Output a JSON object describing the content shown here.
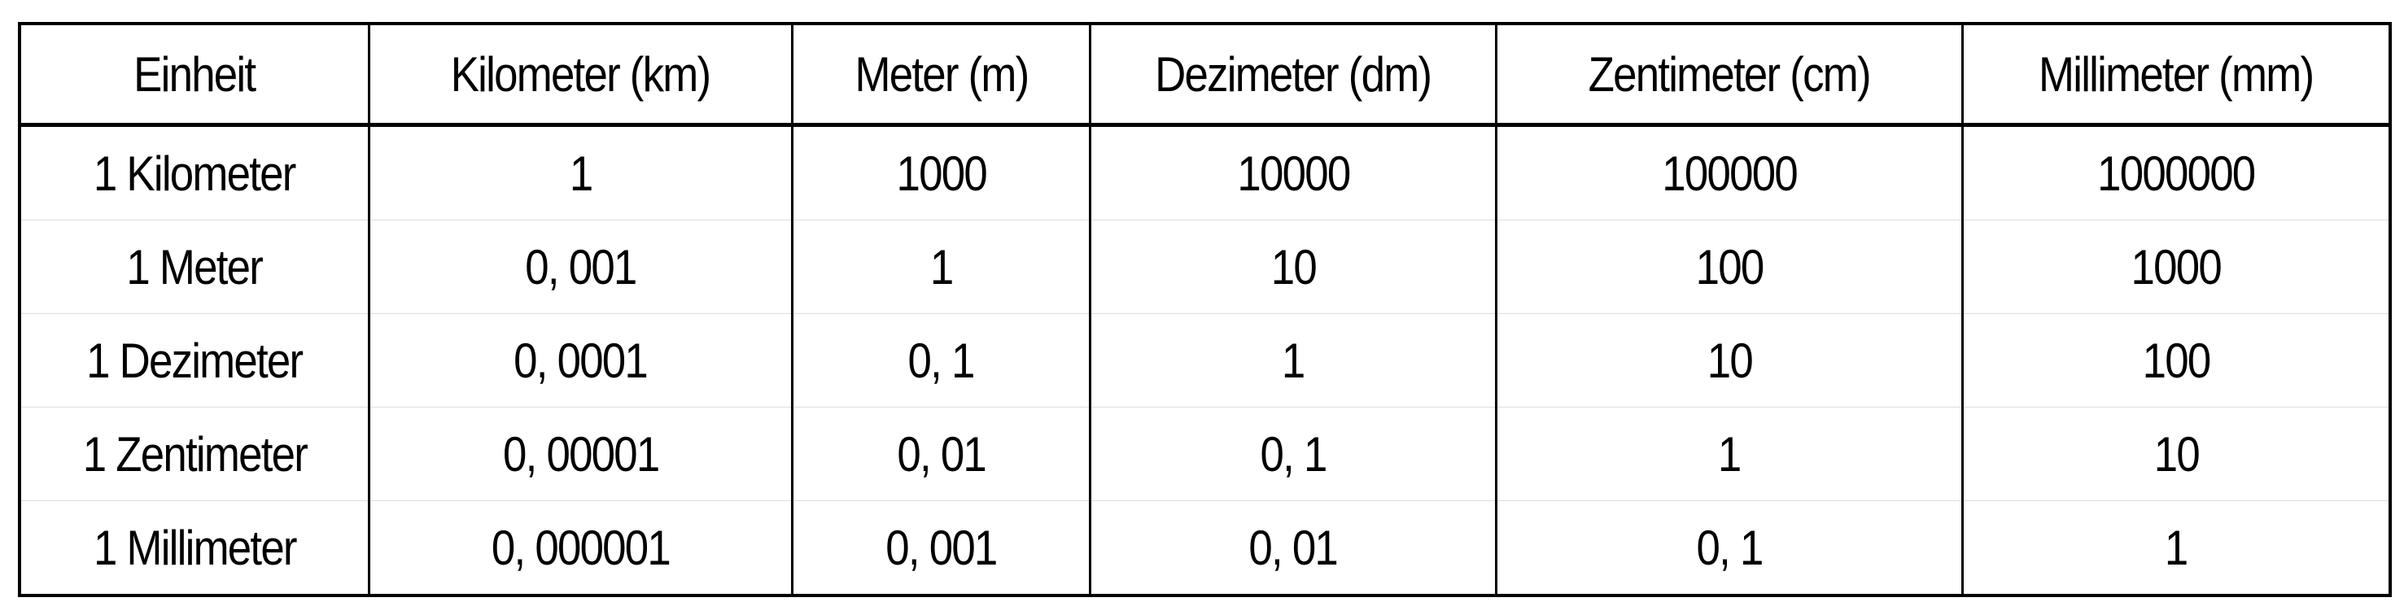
{
  "table": {
    "headers": [
      "Einheit",
      "Kilometer (km)",
      "Meter (m)",
      "Dezimeter (dm)",
      "Zentimeter (cm)",
      "Millimeter (mm)"
    ],
    "rows": [
      [
        "1 Kilometer",
        "1",
        "1000",
        "10000",
        "100000",
        "1000000"
      ],
      [
        "1 Meter",
        "0, 001",
        "1",
        "10",
        "100",
        "1000"
      ],
      [
        "1 Dezimeter",
        "0, 0001",
        "0, 1",
        "1",
        "10",
        "100"
      ],
      [
        "1 Zentimeter",
        "0, 00001",
        "0, 01",
        "0, 1",
        "1",
        "10"
      ],
      [
        "1 Millimeter",
        "0, 000001",
        "0, 001",
        "0, 01",
        "0, 1",
        "1"
      ]
    ]
  }
}
